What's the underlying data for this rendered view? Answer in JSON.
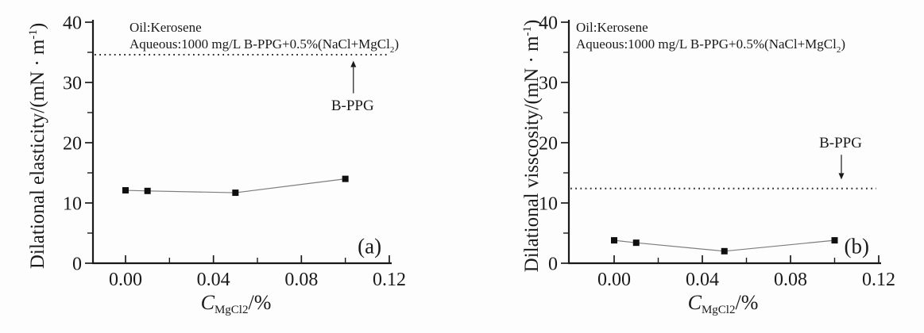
{
  "figure": {
    "background": "#fdfdfd",
    "colors": {
      "axis": "#1a1a1a",
      "text": "#1a1a1a",
      "series_line": "#7d7d7d",
      "marker": "#0f0f0f",
      "dotted": "#2a2a2a"
    }
  },
  "chart_data": [
    {
      "id": "a",
      "type": "line",
      "panel_label": "(a)",
      "panel_pos": {
        "x": 0.111,
        "y": 2.8
      },
      "xlabel": {
        "italic": "C",
        "sub": "MgCl2",
        "post": "/%"
      },
      "ylabel": {
        "pre": "Dilational elasticity/(mN · m",
        "sup": "-1",
        "post": ")"
      },
      "annotation_lines": [
        {
          "pre": "Oil:Kerosene"
        },
        {
          "pre": "Aqueous:1000 mg/L B-PPG+0.5%(NaCl+MgCl",
          "sub": "2",
          "post": ")"
        }
      ],
      "x": [
        0.0,
        0.01,
        0.05,
        0.1
      ],
      "y": [
        12.1,
        12.0,
        11.7,
        14.0
      ],
      "series_marker": "square",
      "reference": {
        "value": 34.6,
        "label": "B-PPG",
        "label_x": 0.1033,
        "label_y": 26.2,
        "arrow_from": 28.2,
        "arrow_to": 33.6,
        "arrow_dir": "up"
      },
      "xlim": [
        0,
        0.12
      ],
      "ylim": [
        0,
        40
      ],
      "x_major_ticks": [
        0.0,
        0.04,
        0.08,
        0.12
      ],
      "x_minor_ticks": [
        0.02,
        0.06,
        0.1
      ],
      "y_major_ticks": [
        0,
        10,
        20,
        30,
        40
      ],
      "y_minor_ticks": [
        5,
        15,
        25,
        35
      ],
      "x_tick_decimals": 2
    },
    {
      "id": "b",
      "type": "line",
      "panel_label": "(b)",
      "panel_pos": {
        "x": 0.11,
        "y": 2.8
      },
      "xlabel": {
        "italic": "C",
        "sub": "MgCl2",
        "post": "/%"
      },
      "ylabel": {
        "pre": "Dilational visscosity/(mN · m",
        "sup": "-1",
        "post": ")"
      },
      "annotation_lines": [
        {
          "pre": "Oil:Kerosene"
        },
        {
          "pre": "Aqueous:1000 mg/L B-PPG+0.5%(NaCl+MgCl",
          "sub": "2",
          "post": ")"
        }
      ],
      "x": [
        0.0,
        0.01,
        0.05,
        0.1
      ],
      "y": [
        3.8,
        3.4,
        2.0,
        3.8
      ],
      "series_marker": "square",
      "reference": {
        "value": 12.4,
        "label": "B-PPG",
        "label_x": 0.1027,
        "label_y": 20.0,
        "arrow_from": 18.0,
        "arrow_to": 13.9,
        "arrow_dir": "down"
      },
      "xlim": [
        0,
        0.12
      ],
      "ylim": [
        0,
        40
      ],
      "x_major_ticks": [
        0.0,
        0.04,
        0.08,
        0.12
      ],
      "x_minor_ticks": [
        0.02,
        0.06,
        0.1
      ],
      "y_major_ticks": [
        0,
        10,
        20,
        30,
        40
      ],
      "y_minor_ticks": [
        5,
        15,
        25,
        35
      ],
      "x_tick_decimals": 2
    }
  ]
}
